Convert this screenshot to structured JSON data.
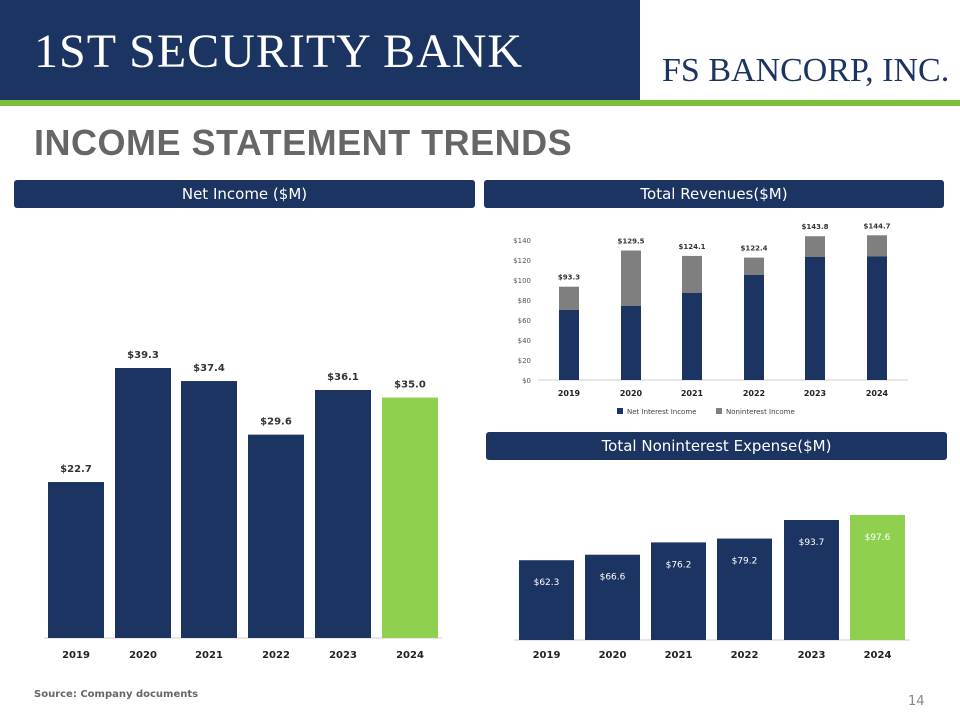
{
  "header": {
    "logo_left": "1ST SECURITY BANK",
    "logo_right": "FS BANCORP, INC."
  },
  "page_title": "INCOME STATEMENT TRENDS",
  "colors": {
    "navy": "#1c3461",
    "green": "#8fd14f",
    "gray": "#7f7f7f",
    "accent_stripe": "#7cbf3c"
  },
  "chart_data": [
    {
      "type": "bar",
      "title": "Net Income ($M)",
      "categories": [
        "2019",
        "2020",
        "2021",
        "2022",
        "2023",
        "2024"
      ],
      "values": [
        22.7,
        39.3,
        37.4,
        29.6,
        36.1,
        35.0
      ],
      "labels": [
        "$22.7",
        "$39.3",
        "$37.4",
        "$29.6",
        "$36.1",
        "$35.0"
      ],
      "highlight_index": 5
    },
    {
      "type": "bar",
      "stacked": true,
      "title": "Total Revenues($M)",
      "categories": [
        "2019",
        "2020",
        "2021",
        "2022",
        "2023",
        "2024"
      ],
      "series": [
        {
          "name": "Net Interest Income",
          "values": [
            70.0,
            74.0,
            87.0,
            105.0,
            123.0,
            123.5
          ]
        },
        {
          "name": "Noninterest Income",
          "values": [
            23.3,
            55.5,
            37.1,
            17.4,
            20.8,
            21.2
          ]
        }
      ],
      "totals": [
        "$93.3",
        "$129.5",
        "$124.1",
        "$122.4",
        "$143.8",
        "$144.7"
      ],
      "yticks": [
        "$0",
        "$20",
        "$40",
        "$60",
        "$80",
        "$100",
        "$120",
        "$140"
      ],
      "ylim": [
        0,
        140
      ],
      "legend": "bottom"
    },
    {
      "type": "bar",
      "title": "Total Noninterest Expense($M)",
      "categories": [
        "2019",
        "2020",
        "2021",
        "2022",
        "2023",
        "2024"
      ],
      "values": [
        62.3,
        66.6,
        76.2,
        79.2,
        93.7,
        97.6
      ],
      "labels": [
        "$62.3",
        "$66.6",
        "$76.2",
        "$79.2",
        "$93.7",
        "$97.6"
      ],
      "highlight_index": 5
    }
  ],
  "footer": {
    "source": "Source: Company documents",
    "page_number": "14"
  }
}
